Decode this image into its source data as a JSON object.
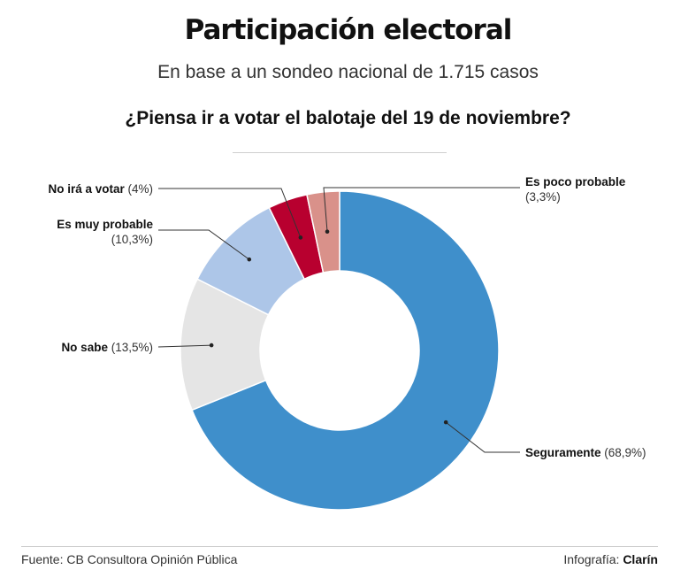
{
  "header": {
    "title": "Participación electoral",
    "subtitle": "En base a un sondeo nacional de 1.715 casos",
    "question": "¿Piensa ir a votar el balotaje del 19 de noviembre?"
  },
  "footer": {
    "source": "Fuente: CB Consultora Opinión Pública",
    "credit_prefix": "Infografía:",
    "credit_brand": "Clarín"
  },
  "chart_data": {
    "type": "pie",
    "variant": "donut",
    "title": "¿Piensa ir a votar el balotaje del 19 de noviembre?",
    "unit": "%",
    "slices": [
      {
        "label": "Seguramente",
        "value": 68.9,
        "value_label": "(68,9%)",
        "color": "#3f8fcb"
      },
      {
        "label": "No sabe",
        "value": 13.5,
        "value_label": "(13,5%)",
        "color": "#e5e5e5"
      },
      {
        "label": "Es muy probable",
        "value": 10.3,
        "value_label": "(10,3%)",
        "color": "#adc6e8"
      },
      {
        "label": "No irá a votar",
        "value": 4,
        "value_label": "(4%)",
        "color": "#b8002f"
      },
      {
        "label": "Es poco probable",
        "value": 3.3,
        "value_label": "(3,3%)",
        "color": "#d9918a"
      }
    ]
  }
}
